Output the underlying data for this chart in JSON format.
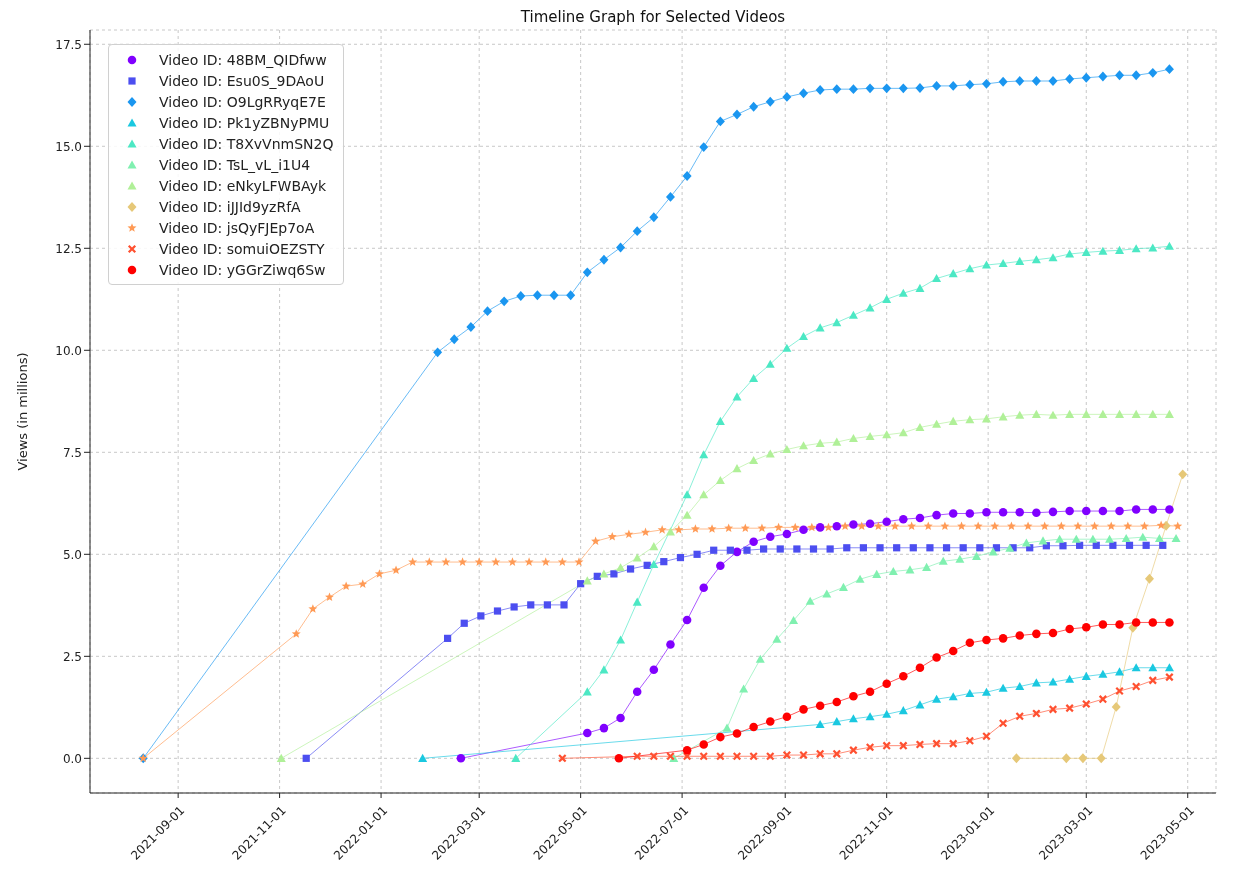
{
  "chart_data": {
    "type": "line",
    "title": "Timeline Graph for Selected Videos",
    "ylabel": "Views (in millions)",
    "xlim": [
      "2021-07-10",
      "2023-05-18"
    ],
    "xticks": [
      "2021-09-01",
      "2021-11-01",
      "2022-01-01",
      "2022-03-01",
      "2022-05-01",
      "2022-07-01",
      "2022-09-01",
      "2022-11-01",
      "2023-01-01",
      "2023-03-01",
      "2023-05-01"
    ],
    "ylim": [
      -0.85,
      17.85
    ],
    "yticks": [
      {
        "value": 0,
        "label": "0.0"
      },
      {
        "value": 2.5,
        "label": "2.5"
      },
      {
        "value": 5,
        "label": "5.0"
      },
      {
        "value": 7.5,
        "label": "7.5"
      },
      {
        "value": 10,
        "label": "10.0"
      },
      {
        "value": 12.5,
        "label": "12.5"
      },
      {
        "value": 15,
        "label": "15.0"
      },
      {
        "value": 17.5,
        "label": "17.5"
      }
    ],
    "grid": true,
    "legend": "top left",
    "line_style": "solid",
    "series": [
      {
        "name": "Video ID: 48BM_QIDfww",
        "color": "#8000ff",
        "marker": "circle",
        "x": [
          "2022-02-18",
          "2022-05-05",
          "2022-05-15",
          "2022-05-25",
          "2022-06-04",
          "2022-06-14",
          "2022-06-24",
          "2022-07-04",
          "2022-07-14",
          "2022-07-24",
          "2022-08-03",
          "2022-08-13",
          "2022-08-23",
          "2022-09-02",
          "2022-09-12",
          "2022-09-22",
          "2022-10-02",
          "2022-10-12",
          "2022-10-22",
          "2022-11-01",
          "2022-11-11",
          "2022-11-21",
          "2022-12-01",
          "2022-12-11",
          "2022-12-21",
          "2022-12-31",
          "2023-01-10",
          "2023-01-20",
          "2023-01-30",
          "2023-02-09",
          "2023-02-19",
          "2023-03-01",
          "2023-03-11",
          "2023-03-21",
          "2023-03-31",
          "2023-04-10",
          "2023-04-20"
        ],
        "values": [
          0,
          0.62,
          0.74,
          0.99,
          1.63,
          2.17,
          2.79,
          3.39,
          4.18,
          4.72,
          5.06,
          5.31,
          5.43,
          5.5,
          5.6,
          5.66,
          5.69,
          5.73,
          5.75,
          5.8,
          5.86,
          5.89,
          5.96,
          6.0,
          6.0,
          6.03,
          6.03,
          6.03,
          6.02,
          6.04,
          6.06,
          6.06,
          6.06,
          6.06,
          6.1,
          6.1,
          6.1
        ]
      },
      {
        "name": "Video ID: Esu0S_9DAoU",
        "color": "#4c4ef0",
        "marker": "square",
        "x": [
          "2021-11-17",
          "2022-02-10",
          "2022-02-20",
          "2022-03-02",
          "2022-03-12",
          "2022-03-22",
          "2022-04-01",
          "2022-04-11",
          "2022-04-21",
          "2022-05-01",
          "2022-05-11",
          "2022-05-21",
          "2022-05-31",
          "2022-06-10",
          "2022-06-20",
          "2022-06-30",
          "2022-07-10",
          "2022-07-20",
          "2022-07-30",
          "2022-08-09",
          "2022-08-19",
          "2022-08-29",
          "2022-09-08",
          "2022-09-18",
          "2022-09-28",
          "2022-10-08",
          "2022-10-18",
          "2022-10-28",
          "2022-11-07",
          "2022-11-17",
          "2022-11-27",
          "2022-12-07",
          "2022-12-17",
          "2022-12-27",
          "2023-01-06",
          "2023-01-16",
          "2023-01-26",
          "2023-02-05",
          "2023-02-15",
          "2023-02-25",
          "2023-03-07",
          "2023-03-17",
          "2023-03-27",
          "2023-04-06",
          "2023-04-16"
        ],
        "values": [
          0,
          2.94,
          3.31,
          3.49,
          3.61,
          3.71,
          3.76,
          3.76,
          3.76,
          4.28,
          4.46,
          4.52,
          4.64,
          4.73,
          4.82,
          4.92,
          5.0,
          5.1,
          5.1,
          5.1,
          5.13,
          5.13,
          5.13,
          5.13,
          5.13,
          5.16,
          5.16,
          5.16,
          5.16,
          5.16,
          5.16,
          5.16,
          5.16,
          5.16,
          5.16,
          5.16,
          5.16,
          5.21,
          5.21,
          5.22,
          5.22,
          5.22,
          5.22,
          5.22,
          5.22
        ]
      },
      {
        "name": "Video ID: O9LgRRyqE7E",
        "color": "#1a96f0",
        "marker": "diamond",
        "x": [
          "2021-08-11",
          "2022-02-04",
          "2022-02-14",
          "2022-02-24",
          "2022-03-06",
          "2022-03-16",
          "2022-03-26",
          "2022-04-05",
          "2022-04-15",
          "2022-04-25",
          "2022-05-05",
          "2022-05-15",
          "2022-05-25",
          "2022-06-04",
          "2022-06-14",
          "2022-06-24",
          "2022-07-04",
          "2022-07-14",
          "2022-07-24",
          "2022-08-03",
          "2022-08-13",
          "2022-08-23",
          "2022-09-02",
          "2022-09-12",
          "2022-09-22",
          "2022-10-02",
          "2022-10-12",
          "2022-10-22",
          "2022-11-01",
          "2022-11-11",
          "2022-11-21",
          "2022-12-01",
          "2022-12-11",
          "2022-12-21",
          "2022-12-31",
          "2023-01-10",
          "2023-01-20",
          "2023-01-30",
          "2023-02-09",
          "2023-02-19",
          "2023-03-01",
          "2023-03-11",
          "2023-03-21",
          "2023-03-31",
          "2023-04-10",
          "2023-04-20"
        ],
        "values": [
          0,
          9.95,
          10.27,
          10.57,
          10.96,
          11.2,
          11.33,
          11.35,
          11.35,
          11.35,
          11.91,
          12.22,
          12.52,
          12.92,
          13.26,
          13.76,
          14.27,
          14.98,
          15.61,
          15.78,
          15.97,
          16.09,
          16.21,
          16.3,
          16.38,
          16.4,
          16.4,
          16.42,
          16.42,
          16.42,
          16.43,
          16.48,
          16.48,
          16.51,
          16.53,
          16.58,
          16.6,
          16.6,
          16.6,
          16.65,
          16.68,
          16.71,
          16.74,
          16.74,
          16.8,
          16.89
        ]
      },
      {
        "name": "Video ID: Pk1yZBNyPMU",
        "color": "#1ac8e0",
        "marker": "triangle",
        "x": [
          "2022-01-26",
          "2022-09-22",
          "2022-10-02",
          "2022-10-12",
          "2022-10-22",
          "2022-11-01",
          "2022-11-11",
          "2022-11-21",
          "2022-12-01",
          "2022-12-11",
          "2022-12-21",
          "2022-12-31",
          "2023-01-10",
          "2023-01-20",
          "2023-01-30",
          "2023-02-09",
          "2023-02-19",
          "2023-03-01",
          "2023-03-11",
          "2023-03-21",
          "2023-03-31",
          "2023-04-10",
          "2023-04-20"
        ],
        "values": [
          0,
          0.83,
          0.9,
          0.97,
          1.02,
          1.08,
          1.17,
          1.31,
          1.45,
          1.51,
          1.59,
          1.62,
          1.72,
          1.76,
          1.85,
          1.87,
          1.94,
          2.01,
          2.06,
          2.12,
          2.22,
          2.22,
          2.22
        ]
      },
      {
        "name": "Video ID: T8XvVnmSN2Q",
        "color": "#4ce8c4",
        "marker": "triangle",
        "x": [
          "2022-03-23",
          "2022-05-05",
          "2022-05-15",
          "2022-05-25",
          "2022-06-04",
          "2022-06-14",
          "2022-06-24",
          "2022-07-04",
          "2022-07-14",
          "2022-07-24",
          "2022-08-03",
          "2022-08-13",
          "2022-08-23",
          "2022-09-02",
          "2022-09-12",
          "2022-09-22",
          "2022-10-02",
          "2022-10-12",
          "2022-10-22",
          "2022-11-01",
          "2022-11-11",
          "2022-11-21",
          "2022-12-01",
          "2022-12-11",
          "2022-12-21",
          "2022-12-31",
          "2023-01-10",
          "2023-01-20",
          "2023-01-30",
          "2023-02-09",
          "2023-02-19",
          "2023-03-01",
          "2023-03-11",
          "2023-03-21",
          "2023-03-31",
          "2023-04-10",
          "2023-04-20"
        ],
        "values": [
          0,
          1.63,
          2.17,
          2.9,
          3.83,
          4.75,
          null,
          6.46,
          7.44,
          8.26,
          8.86,
          9.31,
          9.66,
          10.05,
          10.34,
          10.55,
          10.68,
          10.86,
          11.04,
          11.25,
          11.4,
          11.52,
          11.76,
          11.88,
          12.0,
          12.09,
          12.13,
          12.18,
          12.22,
          12.27,
          12.36,
          12.4,
          12.43,
          12.45,
          12.49,
          12.51,
          12.55
        ]
      },
      {
        "name": "Video ID: TsL_vL_i1U4",
        "color": "#80f0b0",
        "marker": "triangle",
        "x": [
          "2022-06-26",
          "2022-07-28",
          "2022-08-07",
          "2022-08-17",
          "2022-08-27",
          "2022-09-06",
          "2022-09-16",
          "2022-09-26",
          "2022-10-06",
          "2022-10-16",
          "2022-10-26",
          "2022-11-05",
          "2022-11-15",
          "2022-11-25",
          "2022-12-05",
          "2022-12-15",
          "2022-12-25",
          "2023-01-04",
          "2023-01-14",
          "2023-01-24",
          "2023-02-03",
          "2023-02-13",
          "2023-02-23",
          "2023-03-05",
          "2023-03-15",
          "2023-03-25",
          "2023-04-04",
          "2023-04-14",
          "2023-04-24"
        ],
        "values": [
          0,
          0.74,
          1.7,
          2.43,
          2.92,
          3.38,
          3.85,
          4.03,
          4.19,
          4.39,
          4.51,
          4.58,
          4.62,
          4.68,
          4.83,
          4.88,
          4.95,
          5.06,
          5.15,
          5.28,
          5.33,
          5.37,
          5.37,
          5.37,
          5.37,
          5.39,
          5.42,
          5.39,
          5.39
        ]
      },
      {
        "name": "Video ID: eNkyLFWBAyk",
        "color": "#b0f098",
        "marker": "triangle",
        "x": [
          "2021-11-02",
          "2022-05-05",
          "2022-05-15",
          "2022-05-25",
          "2022-06-04",
          "2022-06-14",
          "2022-06-24",
          "2022-07-04",
          "2022-07-14",
          "2022-07-24",
          "2022-08-03",
          "2022-08-13",
          "2022-08-23",
          "2022-09-02",
          "2022-09-12",
          "2022-09-22",
          "2022-10-02",
          "2022-10-12",
          "2022-10-22",
          "2022-11-01",
          "2022-11-11",
          "2022-11-21",
          "2022-12-01",
          "2022-12-11",
          "2022-12-21",
          "2022-12-31",
          "2023-01-10",
          "2023-01-20",
          "2023-01-30",
          "2023-02-09",
          "2023-02-19",
          "2023-03-01",
          "2023-03-11",
          "2023-03-21",
          "2023-03-31",
          "2023-04-10",
          "2023-04-20"
        ],
        "values": [
          0,
          4.35,
          4.52,
          4.67,
          4.91,
          5.19,
          5.55,
          5.96,
          6.46,
          6.81,
          7.1,
          7.3,
          7.46,
          7.57,
          7.66,
          7.72,
          7.75,
          7.84,
          7.89,
          7.93,
          7.98,
          8.11,
          8.19,
          8.26,
          8.3,
          8.32,
          8.37,
          8.41,
          8.43,
          8.41,
          8.43,
          8.43,
          8.43,
          8.43,
          8.43,
          8.43,
          8.43
        ]
      },
      {
        "name": "Video ID: iJJId9yzRfA",
        "color": "#e6c878",
        "marker": "diamond",
        "x": [
          "2023-01-18",
          "2023-02-17",
          "2023-02-27",
          "2023-03-10",
          "2023-03-19",
          "2023-03-29",
          "2023-04-08",
          "2023-04-18",
          "2023-04-28"
        ],
        "values": [
          0,
          0,
          0,
          0,
          1.26,
          3.2,
          4.4,
          5.7,
          6.96
        ]
      },
      {
        "name": "Video ID: jsQyFJEp7oA",
        "color": "#ff9a55",
        "marker": "star",
        "x": [
          "2021-08-11",
          "2021-11-11",
          "2021-11-21",
          "2021-12-01",
          "2021-12-11",
          "2021-12-21",
          "2021-12-31",
          "2022-01-10",
          "2022-01-20",
          "2022-01-30",
          "2022-02-09",
          "2022-02-19",
          "2022-03-01",
          "2022-03-11",
          "2022-03-21",
          "2022-03-31",
          "2022-04-10",
          "2022-04-20",
          "2022-04-30",
          "2022-05-10",
          "2022-05-20",
          "2022-05-30",
          "2022-06-09",
          "2022-06-19",
          "2022-06-29",
          "2022-07-09",
          "2022-07-19",
          "2022-07-29",
          "2022-08-08",
          "2022-08-18",
          "2022-08-28",
          "2022-09-07",
          "2022-09-17",
          "2022-09-27",
          "2022-10-07",
          "2022-10-17",
          "2022-10-27",
          "2022-11-06",
          "2022-11-16",
          "2022-11-26",
          "2022-12-06",
          "2022-12-16",
          "2022-12-26",
          "2023-01-05",
          "2023-01-15",
          "2023-01-25",
          "2023-02-04",
          "2023-02-14",
          "2023-02-24",
          "2023-03-06",
          "2023-03-16",
          "2023-03-26",
          "2023-04-05",
          "2023-04-15",
          "2023-04-25"
        ],
        "values": [
          0,
          3.05,
          3.66,
          3.95,
          4.22,
          4.27,
          4.52,
          4.61,
          4.81,
          4.81,
          4.81,
          4.81,
          4.81,
          4.81,
          4.81,
          4.81,
          4.81,
          4.81,
          4.81,
          5.32,
          5.43,
          5.49,
          5.54,
          5.6,
          5.6,
          5.62,
          5.62,
          5.64,
          5.64,
          5.64,
          5.66,
          5.66,
          5.66,
          5.66,
          5.69,
          5.69,
          5.69,
          5.69,
          5.69,
          5.69,
          5.69,
          5.69,
          5.69,
          5.69,
          5.69,
          5.69,
          5.69,
          5.69,
          5.69,
          5.69,
          5.69,
          5.69,
          5.69,
          5.71,
          5.69
        ]
      },
      {
        "name": "Video ID: somuiOEZSTY",
        "color": "#ff5030",
        "marker": "cross",
        "x": [
          "2022-04-20",
          "2022-06-04",
          "2022-06-14",
          "2022-06-24",
          "2022-07-04",
          "2022-07-14",
          "2022-07-24",
          "2022-08-03",
          "2022-08-13",
          "2022-08-23",
          "2022-09-02",
          "2022-09-12",
          "2022-09-22",
          "2022-10-02",
          "2022-10-12",
          "2022-10-22",
          "2022-11-01",
          "2022-11-11",
          "2022-11-21",
          "2022-12-01",
          "2022-12-11",
          "2022-12-21",
          "2022-12-31",
          "2023-01-10",
          "2023-01-20",
          "2023-01-30",
          "2023-02-09",
          "2023-02-19",
          "2023-03-01",
          "2023-03-11",
          "2023-03-21",
          "2023-03-31",
          "2023-04-10",
          "2023-04-20"
        ],
        "values": [
          0,
          0.05,
          0.05,
          0.05,
          0.05,
          0.05,
          0.05,
          0.05,
          0.05,
          0.05,
          0.08,
          0.08,
          0.11,
          0.11,
          0.2,
          0.27,
          0.31,
          0.31,
          0.34,
          0.36,
          0.36,
          0.43,
          0.54,
          0.86,
          1.03,
          1.1,
          1.2,
          1.23,
          1.33,
          1.45,
          1.65,
          1.76,
          1.91,
          1.99
        ]
      },
      {
        "name": "Video ID: yGGrZiwq6Sw",
        "color": "#ff0000",
        "marker": "circle",
        "x": [
          "2022-05-24",
          "2022-07-04",
          "2022-07-14",
          "2022-07-24",
          "2022-08-03",
          "2022-08-13",
          "2022-08-23",
          "2022-09-02",
          "2022-09-12",
          "2022-09-22",
          "2022-10-02",
          "2022-10-12",
          "2022-10-22",
          "2022-11-01",
          "2022-11-11",
          "2022-11-21",
          "2022-12-01",
          "2022-12-11",
          "2022-12-21",
          "2022-12-31",
          "2023-01-10",
          "2023-01-20",
          "2023-01-30",
          "2023-02-09",
          "2023-02-19",
          "2023-03-01",
          "2023-03-11",
          "2023-03-21",
          "2023-03-31",
          "2023-04-10",
          "2023-04-20"
        ],
        "values": [
          0,
          0.2,
          0.34,
          0.52,
          0.61,
          0.77,
          0.9,
          1.02,
          1.2,
          1.29,
          1.38,
          1.52,
          1.63,
          1.83,
          2.01,
          2.22,
          2.47,
          2.63,
          2.83,
          2.9,
          2.94,
          3.01,
          3.05,
          3.07,
          3.17,
          3.21,
          3.28,
          3.28,
          3.33,
          3.33,
          3.33
        ]
      }
    ]
  }
}
